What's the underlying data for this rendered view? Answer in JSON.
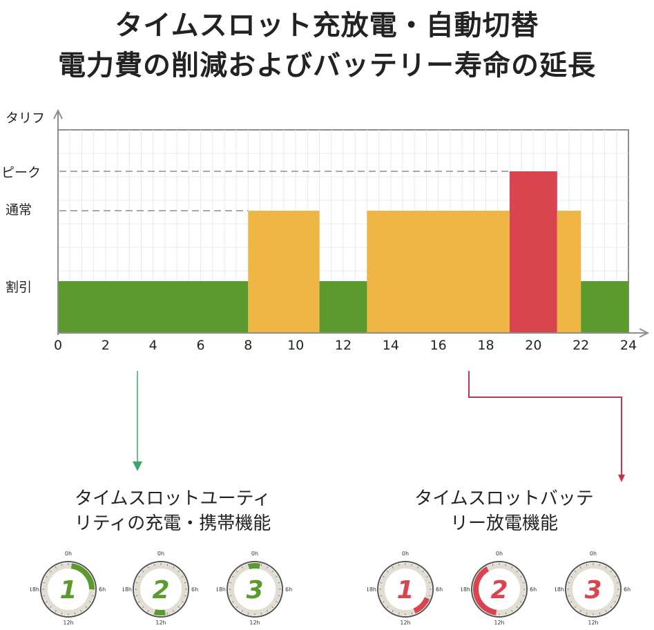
{
  "header": {
    "title_line1": "タイムスロット充放電・自動切替",
    "title_line2": "電力費の削減およびバッテリー寿命の延長"
  },
  "chart_data": {
    "type": "bar",
    "ylabel": "タリフ",
    "y_levels": [
      "割引",
      "通常",
      "ピーク"
    ],
    "x_ticks": [
      0,
      2,
      4,
      6,
      8,
      10,
      12,
      14,
      16,
      18,
      20,
      22,
      24
    ],
    "xlim": [
      0,
      24
    ],
    "grid": true,
    "segments": [
      {
        "start": 0,
        "end": 8,
        "tier": "割引",
        "color": "#5b9a2c"
      },
      {
        "start": 8,
        "end": 11,
        "tier": "通常",
        "color": "#efb646"
      },
      {
        "start": 11,
        "end": 13,
        "tier": "割引",
        "color": "#5b9a2c"
      },
      {
        "start": 13,
        "end": 19,
        "tier": "通常",
        "color": "#efb646"
      },
      {
        "start": 19,
        "end": 21,
        "tier": "ピーク",
        "color": "#d9454f"
      },
      {
        "start": 21,
        "end": 22,
        "tier": "通常",
        "color": "#efb646"
      },
      {
        "start": 22,
        "end": 24,
        "tier": "割引",
        "color": "#5b9a2c"
      }
    ]
  },
  "captions": {
    "left_line1": "タイムスロットユーティ",
    "left_line2": "リティの充電・携帯機能",
    "right_line1": "タイムスロットバッテ",
    "right_line2": "リー放電機能"
  },
  "dial_labels": {
    "top": "0h",
    "right": "6h",
    "bottom": "12h",
    "left": "18h"
  },
  "dials": [
    {
      "number": "1",
      "color": "#5b9a2c",
      "arc_start": 0.5,
      "arc_end": 6
    },
    {
      "number": "2",
      "color": "#5b9a2c",
      "arc_start": 11.3,
      "arc_end": 13
    },
    {
      "number": "3",
      "color": "#5b9a2c",
      "arc_start": 23,
      "arc_end": 24.8
    },
    {
      "number": "1",
      "color": "#d9454f",
      "arc_start": 7.5,
      "arc_end": 10.5
    },
    {
      "number": "2",
      "color": "#d9454f",
      "arc_start": 12.5,
      "arc_end": 22
    },
    {
      "number": "3",
      "color": "#d9454f",
      "arc_start": null,
      "arc_end": null
    }
  ],
  "colors": {
    "discount": "#5b9a2c",
    "normal": "#efb646",
    "peak": "#d9454f",
    "arrow_left": "#3aa86b",
    "arrow_right": "#c4354a"
  }
}
